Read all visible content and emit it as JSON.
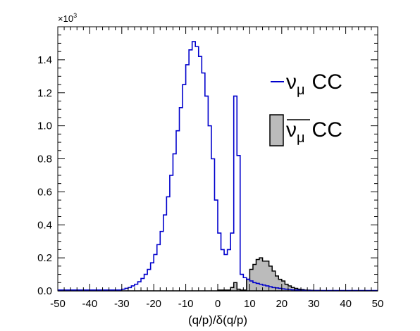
{
  "chart_data": {
    "type": "area",
    "xlabel": "(q/p)/δ(q/p)",
    "ylabel": "",
    "xlim": [
      -50,
      50
    ],
    "ylim": [
      0,
      1.6
    ],
    "y_multiplier": {
      "base": "×10",
      "exponent": "3"
    },
    "x_ticks": [
      "-50",
      "-40",
      "-30",
      "-20",
      "-10",
      "0",
      "10",
      "20",
      "30",
      "40",
      "50"
    ],
    "y_ticks": [
      "0.0",
      "0.2",
      "0.4",
      "0.6",
      "0.8",
      "1.0",
      "1.2",
      "1.4"
    ],
    "x_tick_values": [
      -50,
      -40,
      -30,
      -20,
      -10,
      0,
      10,
      20,
      30,
      40,
      50
    ],
    "y_tick_values": [
      0,
      0.2,
      0.4,
      0.6,
      0.8,
      1.0,
      1.2,
      1.4
    ],
    "bin_width": 1,
    "x_start": -50,
    "legend_placement": "right",
    "series": [
      {
        "name": "ν_μ CC",
        "legend_main": "ν",
        "legend_sub": "μ",
        "legend_suffix": "CC",
        "style": "line",
        "color": "#0000cc",
        "values": [
          0.005,
          0.005,
          0.005,
          0.005,
          0.005,
          0.005,
          0.005,
          0.005,
          0.005,
          0.005,
          0.005,
          0.005,
          0.005,
          0.005,
          0.005,
          0.005,
          0.005,
          0.005,
          0.005,
          0.005,
          0.01,
          0.015,
          0.02,
          0.03,
          0.04,
          0.055,
          0.075,
          0.1,
          0.13,
          0.17,
          0.22,
          0.28,
          0.36,
          0.46,
          0.57,
          0.7,
          0.83,
          0.97,
          1.11,
          1.25,
          1.37,
          1.46,
          1.51,
          1.48,
          1.42,
          1.32,
          1.18,
          1.0,
          0.8,
          0.55,
          0.35,
          0.25,
          0.22,
          0.25,
          0.35,
          1.18,
          0.82,
          0.1,
          0.08,
          0.07,
          0.06,
          0.05,
          0.045,
          0.04,
          0.035,
          0.03,
          0.025,
          0.02,
          0.018,
          0.015,
          0.012,
          0.01,
          0.008,
          0.006,
          0.005,
          0.004,
          0.003,
          0.002,
          0.002,
          0.002,
          0.002,
          0.002,
          0.002,
          0.002,
          0.002,
          0.002,
          0.002,
          0.002,
          0.002,
          0.002,
          0.002,
          0.002,
          0.002,
          0.002,
          0.002,
          0.002,
          0.002,
          0.002,
          0.002,
          0.002
        ]
      },
      {
        "name": "ν̄_μ CC",
        "legend_main": "ν",
        "legend_sub": "μ",
        "legend_suffix": "CC",
        "style": "filled",
        "color": "#000000",
        "fill": "#bbbbbb",
        "values": [
          0,
          0,
          0,
          0,
          0,
          0,
          0,
          0,
          0,
          0,
          0,
          0,
          0,
          0,
          0,
          0,
          0,
          0,
          0,
          0,
          0,
          0,
          0,
          0,
          0,
          0,
          0,
          0,
          0,
          0,
          0,
          0,
          0,
          0,
          0,
          0,
          0,
          0,
          0,
          0,
          0,
          0,
          0,
          0,
          0,
          0,
          0,
          0,
          0,
          0,
          0.005,
          0.005,
          0.005,
          0.005,
          0.02,
          0.05,
          0.01,
          0.005,
          0.005,
          0.07,
          0.13,
          0.16,
          0.19,
          0.2,
          0.18,
          0.18,
          0.15,
          0.12,
          0.09,
          0.07,
          0.06,
          0.04,
          0.03,
          0.02,
          0.015,
          0.01,
          0.008,
          0.005,
          0.004,
          0.003,
          0.002,
          0.002,
          0.001,
          0.001,
          0,
          0,
          0,
          0,
          0,
          0,
          0,
          0,
          0,
          0,
          0,
          0,
          0,
          0,
          0,
          0
        ]
      }
    ]
  }
}
